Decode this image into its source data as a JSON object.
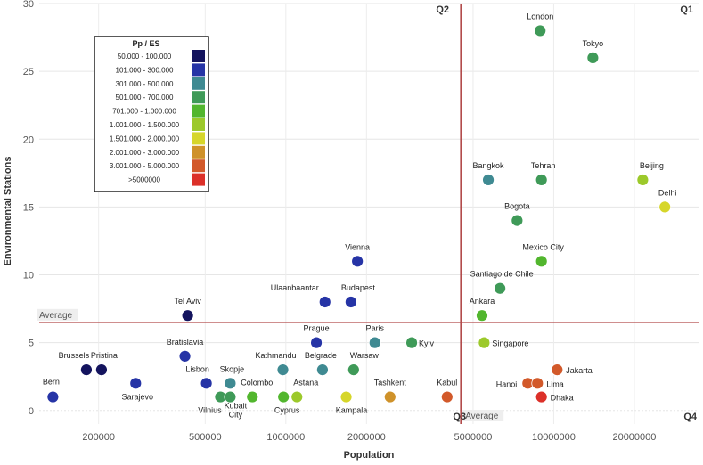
{
  "chart_data": {
    "type": "scatter",
    "title": "",
    "xlabel": "Population",
    "ylabel": "Environmental Stations",
    "xscale": "log",
    "xlim": [
      120000,
      35000000
    ],
    "ylim": [
      -1,
      30
    ],
    "xticks": [
      200000,
      500000,
      1000000,
      2000000,
      5000000,
      10000000,
      20000000
    ],
    "xtick_labels": [
      "200000",
      "500000",
      "1000000",
      "2000000",
      "5000000",
      "10000000",
      "20000000"
    ],
    "yticks": [
      0,
      5,
      10,
      15,
      20,
      25,
      30
    ],
    "ytick_labels": [
      "0",
      "5",
      "10",
      "15",
      "20",
      "25",
      "30"
    ],
    "average_x": 4500000,
    "average_y": 6.5,
    "average_label": "Average",
    "quadrants": [
      "Q1",
      "Q2",
      "Q3",
      "Q4"
    ],
    "legend": {
      "title": "Pp / ES",
      "entries": [
        {
          "label": "50.000   -   100.000",
          "color": "#14145e"
        },
        {
          "label": "101.000   -   300.000",
          "color": "#2634a6"
        },
        {
          "label": "301.000   -   500.000",
          "color": "#3f8a92"
        },
        {
          "label": "501.000   -   700.000",
          "color": "#3f9a58"
        },
        {
          "label": "701.000   -   1.000.000",
          "color": "#52b62e"
        },
        {
          "label": "1.001.000   -   1.500.000",
          "color": "#9cc92b"
        },
        {
          "label": "1.501.000   -   2.000.000",
          "color": "#d6d62a"
        },
        {
          "label": "2.001.000   -   3.000.000",
          "color": "#cf922a"
        },
        {
          "label": "3.001.000   -   5.000.000",
          "color": "#d2592a"
        },
        {
          "label": ">5000000",
          "color": "#dc3029"
        }
      ]
    },
    "points": [
      {
        "name": "London",
        "x": 8900000,
        "y": 28,
        "cat": 3
      },
      {
        "name": "Tokyo",
        "x": 14000000,
        "y": 26,
        "cat": 3
      },
      {
        "name": "Bangkok",
        "x": 5700000,
        "y": 17,
        "cat": 2
      },
      {
        "name": "Tehran",
        "x": 9000000,
        "y": 17,
        "cat": 3
      },
      {
        "name": "Beijing",
        "x": 21500000,
        "y": 17,
        "cat": 5
      },
      {
        "name": "Delhi",
        "x": 26000000,
        "y": 15,
        "cat": 6
      },
      {
        "name": "Bogota",
        "x": 7300000,
        "y": 14,
        "cat": 3
      },
      {
        "name": "Mexico City",
        "x": 9000000,
        "y": 11,
        "cat": 4
      },
      {
        "name": "Santiago de Chile",
        "x": 6300000,
        "y": 9,
        "cat": 3
      },
      {
        "name": "Ankara",
        "x": 5400000,
        "y": 7,
        "cat": 4
      },
      {
        "name": "Singapore",
        "x": 5500000,
        "y": 5,
        "cat": 5
      },
      {
        "name": "Vienna",
        "x": 1850000,
        "y": 11,
        "cat": 1
      },
      {
        "name": "Ulaanbaantar",
        "x": 1400000,
        "y": 8,
        "cat": 1
      },
      {
        "name": "Budapest",
        "x": 1750000,
        "y": 8,
        "cat": 1
      },
      {
        "name": "Tel Aviv",
        "x": 430000,
        "y": 7,
        "cat": 0
      },
      {
        "name": "Prague",
        "x": 1300000,
        "y": 5,
        "cat": 1
      },
      {
        "name": "Paris",
        "x": 2150000,
        "y": 5,
        "cat": 2
      },
      {
        "name": "Kyiv",
        "x": 2950000,
        "y": 5,
        "cat": 3
      },
      {
        "name": "Bratislavia",
        "x": 420000,
        "y": 4,
        "cat": 1
      },
      {
        "name": "Brussels",
        "x": 180000,
        "y": 3,
        "cat": 0
      },
      {
        "name": "Pristina",
        "x": 205000,
        "y": 3,
        "cat": 0
      },
      {
        "name": "Sarajevo",
        "x": 275000,
        "y": 2,
        "cat": 1
      },
      {
        "name": "Bern",
        "x": 135000,
        "y": 1,
        "cat": 1
      },
      {
        "name": "Lisbon",
        "x": 505000,
        "y": 2,
        "cat": 1
      },
      {
        "name": "Skopje",
        "x": 620000,
        "y": 2,
        "cat": 2
      },
      {
        "name": "Vilnius",
        "x": 570000,
        "y": 1,
        "cat": 3
      },
      {
        "name": "Kubait City",
        "x": 620000,
        "y": 1,
        "cat": 3
      },
      {
        "name": "Colombo",
        "x": 750000,
        "y": 1,
        "cat": 4
      },
      {
        "name": "Kathmandu",
        "x": 975000,
        "y": 3,
        "cat": 2
      },
      {
        "name": "Cyprus",
        "x": 980000,
        "y": 1,
        "cat": 4
      },
      {
        "name": "Astana",
        "x": 1100000,
        "y": 1,
        "cat": 5
      },
      {
        "name": "Belgrade",
        "x": 1370000,
        "y": 3,
        "cat": 2
      },
      {
        "name": "Warsaw",
        "x": 1790000,
        "y": 3,
        "cat": 3
      },
      {
        "name": "Kampala",
        "x": 1680000,
        "y": 1,
        "cat": 6
      },
      {
        "name": "Tashkent",
        "x": 2450000,
        "y": 1,
        "cat": 7
      },
      {
        "name": "Kabul",
        "x": 4000000,
        "y": 1,
        "cat": 8
      },
      {
        "name": "Hanoi",
        "x": 8000000,
        "y": 2,
        "cat": 8
      },
      {
        "name": "Lima",
        "x": 8700000,
        "y": 2,
        "cat": 8
      },
      {
        "name": "Jakarta",
        "x": 10300000,
        "y": 3,
        "cat": 8
      },
      {
        "name": "Dhaka",
        "x": 9000000,
        "y": 1,
        "cat": 9
      }
    ]
  }
}
